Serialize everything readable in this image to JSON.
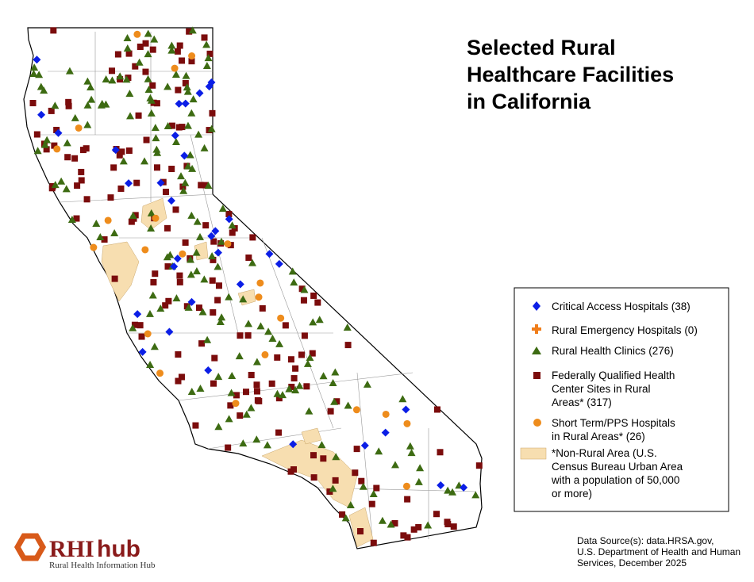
{
  "title": {
    "lines": [
      "Selected Rural",
      "Healthcare Facilities",
      "in California"
    ]
  },
  "legend": [
    {
      "lines": [
        "Critical Access Hospitals (38)"
      ]
    },
    {
      "lines": [
        "Rural Emergency Hospitals (0)"
      ]
    },
    {
      "lines": [
        "Rural Health Clinics (276)"
      ]
    },
    {
      "lines": [
        "Federally Qualified Health",
        "Center Sites in Rural",
        "Areas* (317)"
      ]
    },
    {
      "lines": [
        "Short Term/PPS Hospitals",
        "in Rural Areas* (26)"
      ]
    },
    {
      "lines": [
        "*Non-Rural Area (U.S.",
        "Census Bureau Urban Area",
        "with a population of 50,000",
        "or more)"
      ]
    }
  ],
  "source": {
    "lines": [
      "Data Source(s): data.HRSA.gov,",
      "U.S. Department of Health and Human",
      "Services, December 2025"
    ]
  },
  "logo": {
    "brand_a": "RHI",
    "brand_b": "hub",
    "tagline": "Rural Health Information Hub"
  }
}
